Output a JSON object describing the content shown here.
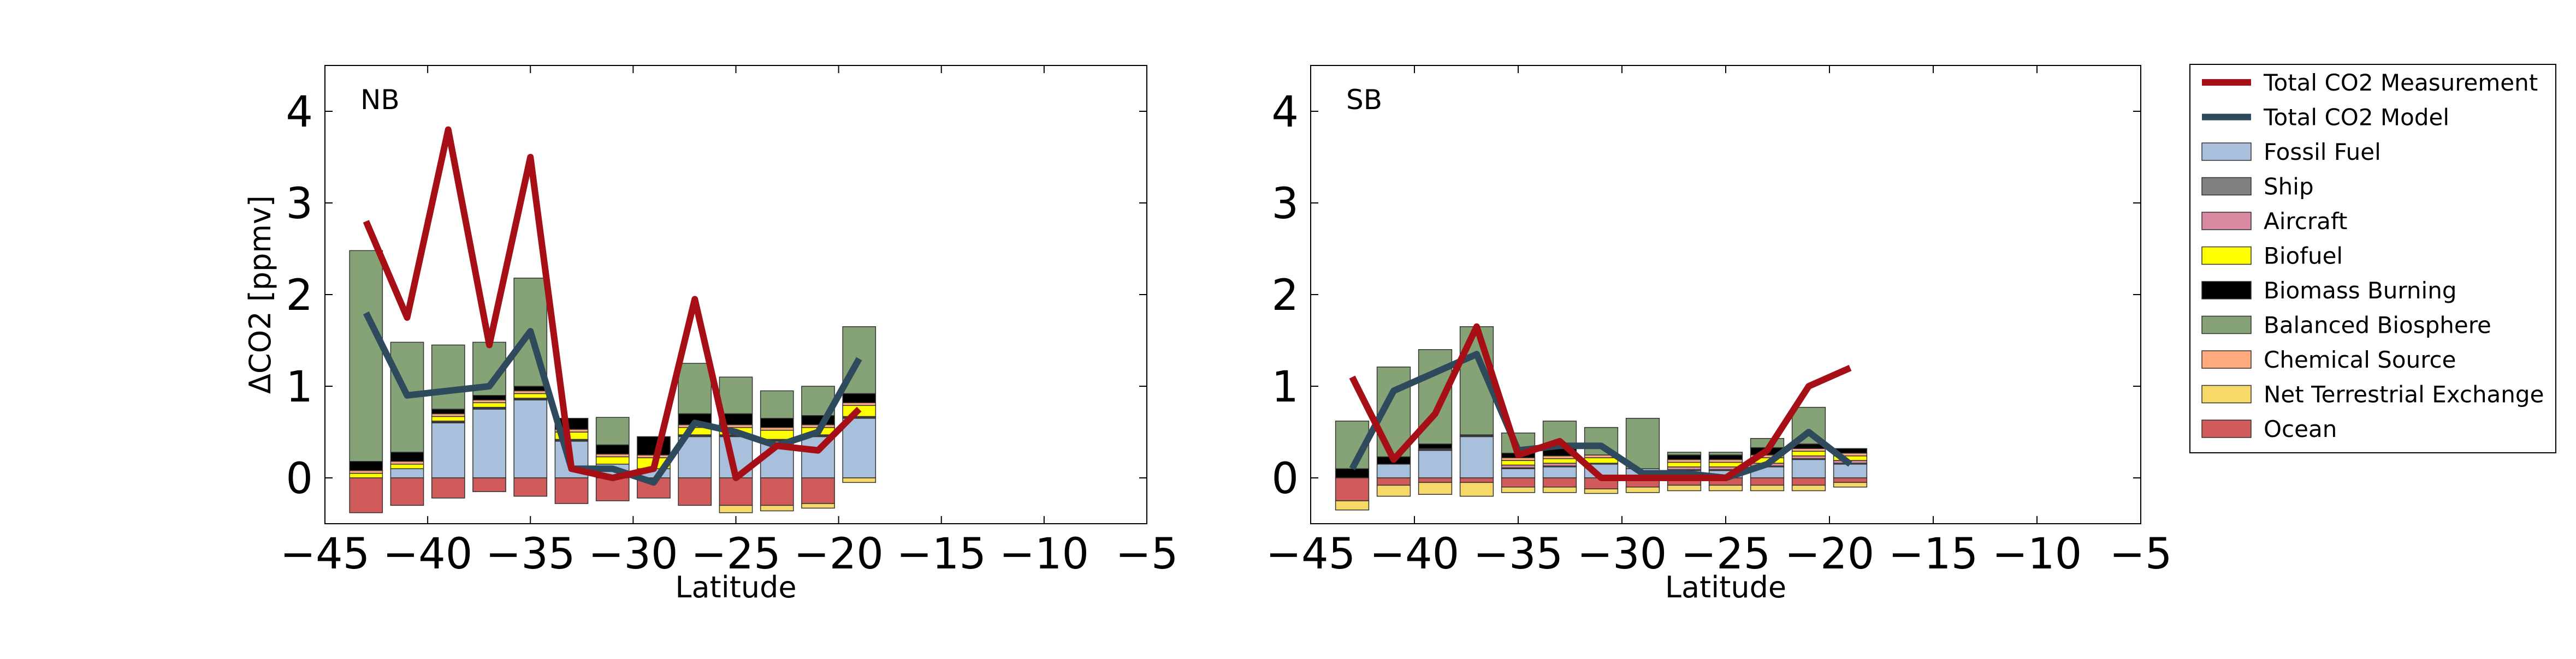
{
  "chart_data": [
    {
      "type": "bar",
      "panel_label": "NB",
      "xlabel": "Latitude",
      "ylabel": "ΔCO2 [ppmv]",
      "xlim": [
        -45,
        -5
      ],
      "ylim": [
        -0.5,
        4.5
      ],
      "xticks": [
        "−45",
        "−40",
        "−35",
        "−30",
        "−25",
        "−20",
        "−15",
        "−10",
        "−5"
      ],
      "yticks": [
        "0",
        "1",
        "2",
        "3",
        "4"
      ],
      "x": [
        -43,
        -41,
        -39,
        -37,
        -35,
        -33,
        -31,
        -29,
        -27,
        -25,
        -23,
        -21,
        -19
      ],
      "components": [
        {
          "name": "Ocean",
          "values": [
            -0.38,
            -0.3,
            -0.22,
            -0.15,
            -0.2,
            -0.28,
            -0.25,
            -0.22,
            -0.3,
            -0.3,
            -0.3,
            -0.28,
            0.0
          ]
        },
        {
          "name": "Net Terrestrial Exchange",
          "values": [
            0.0,
            0.0,
            0.0,
            0.0,
            0.0,
            0.0,
            0.0,
            0.0,
            0.0,
            -0.08,
            -0.06,
            -0.05,
            -0.05
          ]
        },
        {
          "name": "Fossil Fuel",
          "values": [
            0.0,
            0.1,
            0.6,
            0.75,
            0.85,
            0.4,
            0.15,
            0.1,
            0.45,
            0.45,
            0.4,
            0.45,
            0.65
          ]
        },
        {
          "name": "Ship",
          "values": [
            0.0,
            0.0,
            0.01,
            0.01,
            0.01,
            0.01,
            0.0,
            0.0,
            0.01,
            0.01,
            0.01,
            0.01,
            0.01
          ]
        },
        {
          "name": "Aircraft",
          "values": [
            0.0,
            0.0,
            0.01,
            0.01,
            0.01,
            0.01,
            0.0,
            0.0,
            0.01,
            0.01,
            0.01,
            0.01,
            0.01
          ]
        },
        {
          "name": "Biofuel",
          "values": [
            0.05,
            0.05,
            0.05,
            0.05,
            0.05,
            0.08,
            0.08,
            0.12,
            0.08,
            0.08,
            0.1,
            0.08,
            0.12
          ]
        },
        {
          "name": "Chemical Source",
          "values": [
            0.03,
            0.03,
            0.03,
            0.03,
            0.03,
            0.03,
            0.03,
            0.03,
            0.03,
            0.03,
            0.03,
            0.03,
            0.03
          ]
        },
        {
          "name": "Biomass Burning",
          "values": [
            0.1,
            0.1,
            0.05,
            0.05,
            0.05,
            0.12,
            0.1,
            0.2,
            0.12,
            0.12,
            0.1,
            0.1,
            0.1
          ]
        },
        {
          "name": "Balanced Biosphere",
          "values": [
            2.3,
            1.2,
            0.7,
            0.58,
            1.18,
            0.0,
            0.3,
            0.0,
            0.55,
            0.4,
            0.3,
            0.32,
            0.73
          ]
        }
      ],
      "measurement": [
        2.8,
        1.75,
        3.8,
        1.45,
        3.5,
        0.1,
        0.0,
        0.1,
        1.95,
        0.0,
        0.35,
        0.3,
        0.75
      ],
      "model": [
        1.8,
        0.9,
        0.95,
        1.0,
        1.6,
        0.1,
        0.1,
        -0.05,
        0.6,
        0.5,
        0.35,
        0.5,
        1.3
      ]
    },
    {
      "type": "bar",
      "panel_label": "SB",
      "xlabel": "Latitude",
      "ylabel": "",
      "xlim": [
        -45,
        -5
      ],
      "ylim": [
        -0.5,
        4.5
      ],
      "xticks": [
        "−45",
        "−40",
        "−35",
        "−30",
        "−25",
        "−20",
        "−15",
        "−10",
        "−5"
      ],
      "yticks": [
        "0",
        "1",
        "2",
        "3",
        "4"
      ],
      "x": [
        -43,
        -41,
        -39,
        -37,
        -35,
        -33,
        -31,
        -29,
        -27,
        -25,
        -23,
        -21,
        -19
      ],
      "components": [
        {
          "name": "Ocean",
          "values": [
            -0.25,
            -0.08,
            -0.05,
            -0.05,
            -0.1,
            -0.1,
            -0.12,
            -0.1,
            -0.08,
            -0.08,
            -0.08,
            -0.08,
            -0.05
          ]
        },
        {
          "name": "Net Terrestrial Exchange",
          "values": [
            -0.1,
            -0.12,
            -0.13,
            -0.15,
            -0.06,
            -0.06,
            -0.05,
            -0.06,
            -0.06,
            -0.06,
            -0.06,
            -0.06,
            -0.05
          ]
        },
        {
          "name": "Fossil Fuel",
          "values": [
            0.0,
            0.15,
            0.3,
            0.45,
            0.1,
            0.12,
            0.15,
            0.1,
            0.08,
            0.08,
            0.12,
            0.2,
            0.15
          ]
        },
        {
          "name": "Ship",
          "values": [
            0.0,
            0.0,
            0.01,
            0.01,
            0.01,
            0.01,
            0.0,
            0.0,
            0.01,
            0.01,
            0.01,
            0.01,
            0.01
          ]
        },
        {
          "name": "Aircraft",
          "values": [
            0.0,
            0.0,
            0.01,
            0.01,
            0.03,
            0.03,
            0.01,
            0.0,
            0.03,
            0.03,
            0.03,
            0.03,
            0.03
          ]
        },
        {
          "name": "Biofuel",
          "values": [
            0.0,
            0.0,
            0.0,
            0.0,
            0.05,
            0.05,
            0.06,
            0.0,
            0.05,
            0.05,
            0.06,
            0.05,
            0.05
          ]
        },
        {
          "name": "Chemical Source",
          "values": [
            0.0,
            0.0,
            0.0,
            0.0,
            0.03,
            0.03,
            0.03,
            0.0,
            0.03,
            0.03,
            0.03,
            0.03,
            0.03
          ]
        },
        {
          "name": "Biomass Burning",
          "values": [
            0.1,
            0.08,
            0.05,
            0.0,
            0.05,
            0.08,
            0.0,
            0.0,
            0.05,
            0.05,
            0.08,
            0.05,
            0.05
          ]
        },
        {
          "name": "Balanced Biosphere",
          "values": [
            0.52,
            0.98,
            1.03,
            1.18,
            0.22,
            0.3,
            0.3,
            0.55,
            0.03,
            0.03,
            0.1,
            0.4,
            0.0
          ]
        }
      ],
      "measurement": [
        1.1,
        0.2,
        0.7,
        1.65,
        0.25,
        0.4,
        0.0,
        0.0,
        0.0,
        0.0,
        0.3,
        1.0,
        1.2
      ],
      "model": [
        0.1,
        0.95,
        1.15,
        1.35,
        0.3,
        0.35,
        0.35,
        0.05,
        0.05,
        0.0,
        0.15,
        0.5,
        0.15
      ]
    }
  ],
  "legend": {
    "placement": "right",
    "items": [
      {
        "label": "Total CO2 Measurement",
        "kind": "line",
        "color": "#a50f15"
      },
      {
        "label": "Total CO2 Model",
        "kind": "line",
        "color": "#2e4a5c"
      },
      {
        "label": "Fossil Fuel",
        "kind": "patch",
        "color": "#a9c0dc"
      },
      {
        "label": "Ship",
        "kind": "patch",
        "color": "#808080"
      },
      {
        "label": "Aircraft",
        "kind": "patch",
        "color": "#d98aa0"
      },
      {
        "label": "Biofuel",
        "kind": "patch",
        "color": "#ffff00"
      },
      {
        "label": "Biomass Burning",
        "kind": "patch",
        "color": "#000000"
      },
      {
        "label": "Balanced Biosphere",
        "kind": "patch",
        "color": "#85a377"
      },
      {
        "label": "Chemical Source",
        "kind": "patch",
        "color": "#ffaa7f"
      },
      {
        "label": "Net Terrestrial Exchange",
        "kind": "patch",
        "color": "#f7d96a"
      },
      {
        "label": "Ocean",
        "kind": "patch",
        "color": "#d15b5b"
      }
    ]
  },
  "colors": {
    "Fossil Fuel": "#a9c0dc",
    "Ship": "#808080",
    "Aircraft": "#d98aa0",
    "Biofuel": "#ffff00",
    "Biomass Burning": "#000000",
    "Balanced Biosphere": "#85a377",
    "Chemical Source": "#ffaa7f",
    "Net Terrestrial Exchange": "#f7d96a",
    "Ocean": "#d15b5b",
    "measurement": "#a50f15",
    "model": "#2e4a5c"
  }
}
